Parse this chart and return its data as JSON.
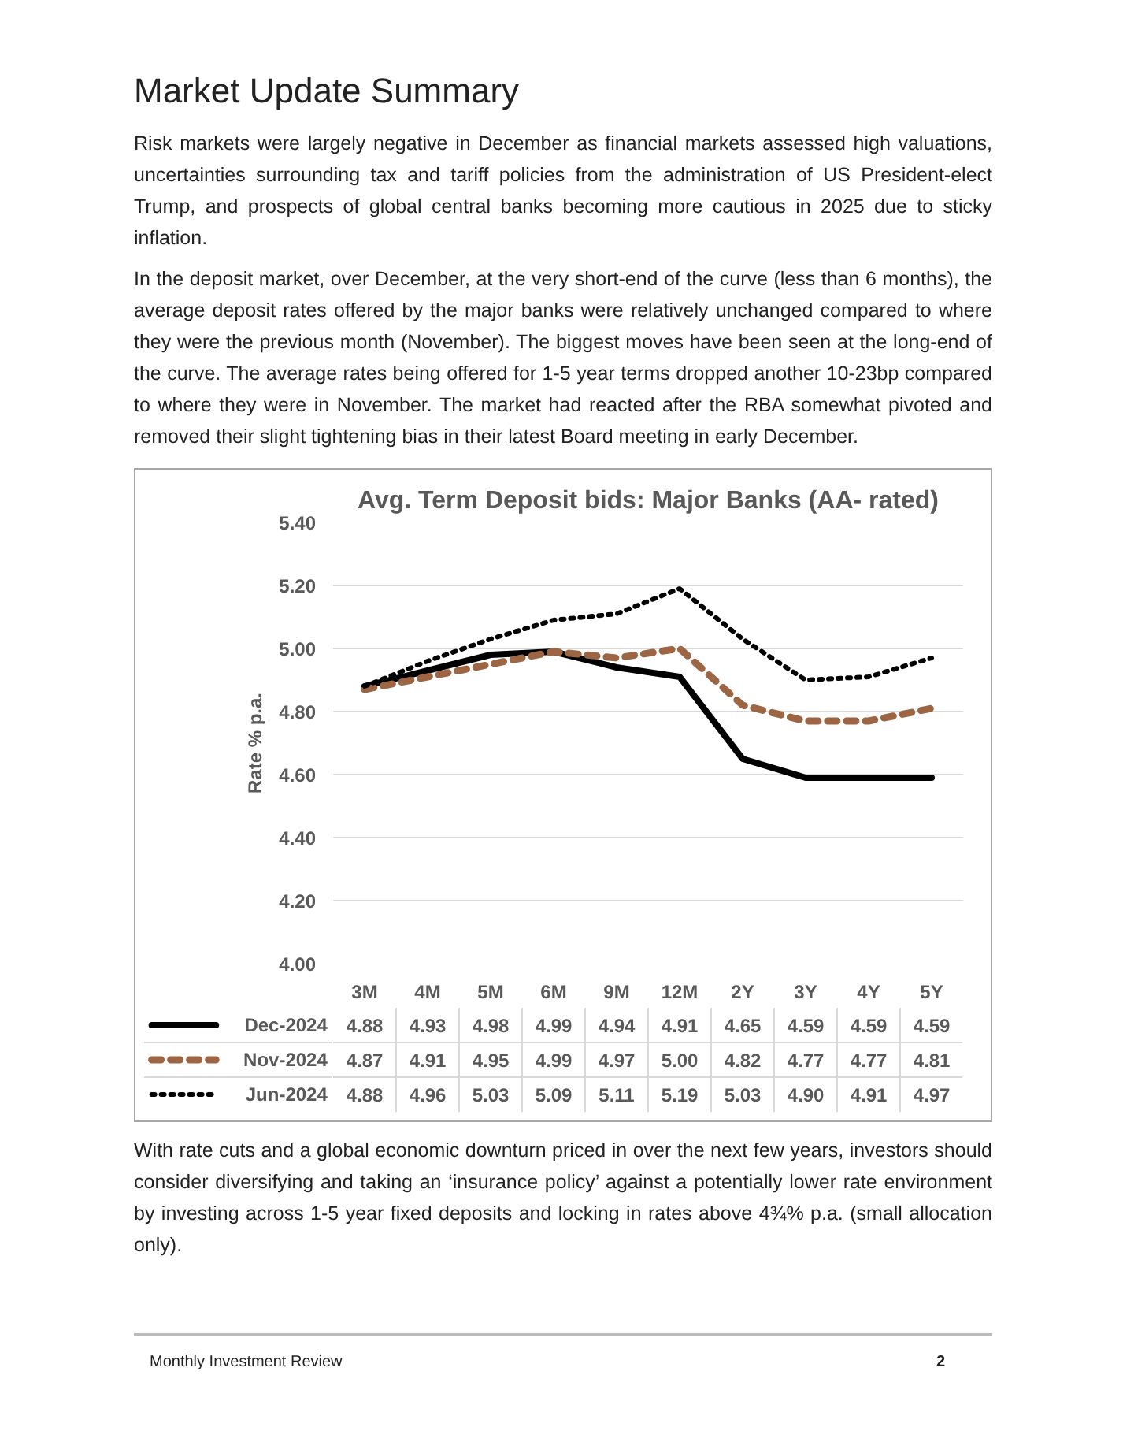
{
  "chart_data": {
    "type": "line",
    "title": "Avg. Term Deposit bids: Major Banks (AA- rated)",
    "ylabel": "Rate % p.a.",
    "categories": [
      "3M",
      "4M",
      "5M",
      "6M",
      "9M",
      "12M",
      "2Y",
      "3Y",
      "4Y",
      "5Y"
    ],
    "series": [
      {
        "name": "Dec-2024",
        "color": "#000000",
        "line_style": "solid",
        "values": [
          4.88,
          4.93,
          4.98,
          4.99,
          4.94,
          4.91,
          4.65,
          4.59,
          4.59,
          4.59
        ],
        "value_labels": [
          "4.88",
          "4.93",
          "4.98",
          "4.99",
          "4.94",
          "4.91",
          "4.65",
          "4.59",
          "4.59",
          "4.59"
        ]
      },
      {
        "name": "Nov-2024",
        "color": "#9c6644",
        "line_style": "dashed",
        "values": [
          4.87,
          4.91,
          4.95,
          4.99,
          4.97,
          5.0,
          4.82,
          4.77,
          4.77,
          4.81
        ],
        "value_labels": [
          "4.87",
          "4.91",
          "4.95",
          "4.99",
          "4.97",
          "5.00",
          "4.82",
          "4.77",
          "4.77",
          "4.81"
        ]
      },
      {
        "name": "Jun-2024",
        "color": "#000000",
        "line_style": "dotted",
        "values": [
          4.88,
          4.96,
          5.03,
          5.09,
          5.11,
          5.19,
          5.03,
          4.9,
          4.91,
          4.97
        ],
        "value_labels": [
          "4.88",
          "4.96",
          "5.03",
          "5.09",
          "5.11",
          "5.19",
          "5.03",
          "4.90",
          "4.91",
          "4.97"
        ]
      }
    ],
    "ylim": [
      4.0,
      5.4
    ],
    "yticks": [
      {
        "value": 4.0,
        "label": "4.00"
      },
      {
        "value": 4.2,
        "label": "4.20"
      },
      {
        "value": 4.4,
        "label": "4.40"
      },
      {
        "value": 4.6,
        "label": "4.60"
      },
      {
        "value": 4.8,
        "label": "4.80"
      },
      {
        "value": 5.0,
        "label": "5.00"
      },
      {
        "value": 5.2,
        "label": "5.20"
      },
      {
        "value": 5.4,
        "label": "5.40"
      }
    ],
    "grid": "y",
    "legend": "bottom",
    "annotations": [
      "Market Update Summary",
      "Risk markets were largely negative in December as financial markets assessed high valuations, uncertainties surrounding tax and tariff policies from the administration of US President-elect Trump, and prospects of global central banks becoming more cautious in 2025 due to sticky inflation.",
      "In the deposit market, over December, at the very short-end of the curve (less than 6 months), the average deposit rates offered by the major banks were relatively unchanged compared to where they were the previous month (November). The biggest moves have been seen at the long-end of the curve. The average rates being offered for 1-5 year terms dropped another 10-23bp compared to where they were in November. The market had reacted after the RBA somewhat pivoted and removed their slight tightening bias in their latest Board meeting in early December.",
      "With rate cuts and a global economic downturn priced in over the next few years, investors should consider diversifying and taking an ‘insurance policy’ against a potentially lower rate environment by investing across 1-5 year fixed deposits and locking in rates above 4¾% p.a. (small allocation only).",
      "Monthly Investment Review",
      "2"
    ]
  }
}
